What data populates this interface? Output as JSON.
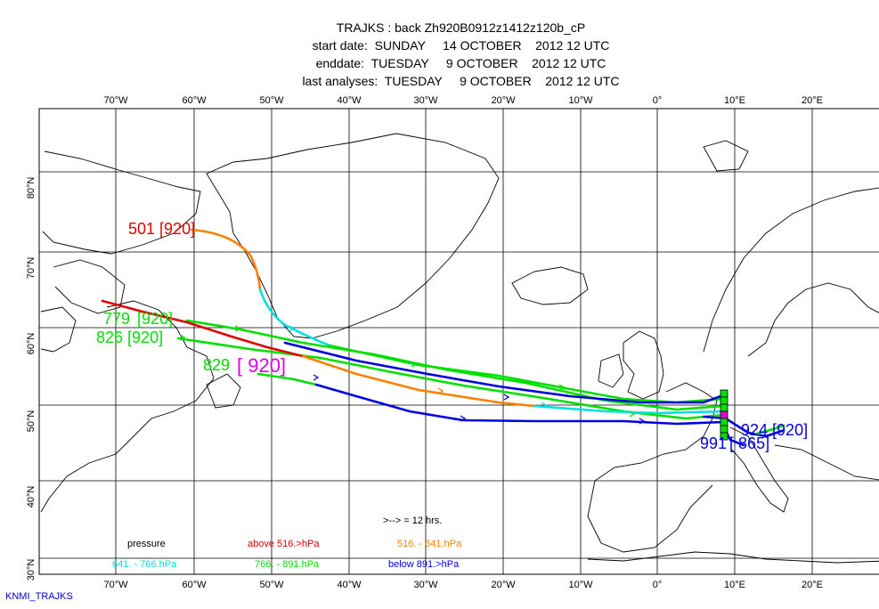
{
  "header": {
    "title": "TRAJKS : back Zh920B0912z1412z120b_cP",
    "start_line": "start date:  SUNDAY     14 OCTOBER    2012 12 UTC",
    "end_line": "enddate:  TUESDAY     9 OCTOBER    2012 12 UTC",
    "analysis_line": "last analyses:  TUESDAY     9 OCTOBER    2012 12 UTC"
  },
  "axes": {
    "lon_labels": [
      "70°W",
      "60°W",
      "50°W",
      "40°W",
      "30°W",
      "20°W",
      "10°W",
      "0°",
      "10°E",
      "20°E"
    ],
    "lat_labels": [
      "80°N",
      "70°N",
      "60°N",
      "50°N",
      "40°N",
      "30°N"
    ]
  },
  "trajectory_labels": {
    "t501": "501",
    "t501_p": "[920]",
    "t779": "779",
    "t779_p": "[920]",
    "t826": "826",
    "t826_p": "[920]",
    "t829": "829",
    "t829_p": "[ 920]",
    "t924": "924",
    "t924_p": "[920]",
    "t991": "991",
    "t991_p": "[ 865]"
  },
  "legend": {
    "interval": ">--> = 12 hrs.",
    "pressure": "pressure",
    "above": "above   516.>hPa",
    "r516_641": "516. -     641.hPa",
    "r641_766": "641. -     766.hPa",
    "r766_891": "766. -     891.hPa",
    "below": "below   891.>hPa"
  },
  "colors": {
    "above_516": "#e00000",
    "r516_641": "#ff8000",
    "r641_766": "#00e0e0",
    "r766_891": "#00e000",
    "below_891": "#0000e0",
    "magenta": "#e000e0"
  },
  "footer": {
    "credit": "KNMI_TRAJKS"
  }
}
